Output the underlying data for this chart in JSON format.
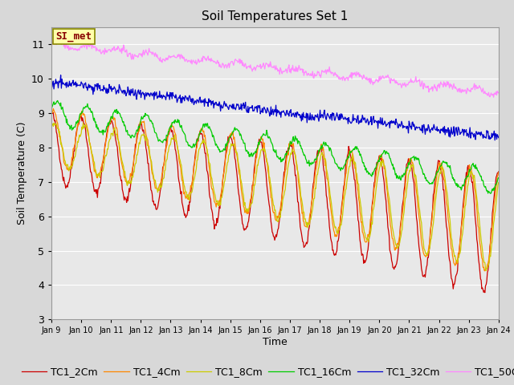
{
  "title": "Soil Temperatures Set 1",
  "xlabel": "Time",
  "ylabel": "Soil Temperature (C)",
  "ylim": [
    3.0,
    11.5
  ],
  "yticks": [
    3.0,
    4.0,
    5.0,
    6.0,
    7.0,
    8.0,
    9.0,
    10.0,
    11.0
  ],
  "date_labels": [
    "Jan 9",
    "Jan 10",
    "Jan 11",
    "Jan 12",
    "Jan 13",
    "Jan 14",
    "Jan 15",
    "Jan 16",
    "Jan 17",
    "Jan 18",
    "Jan 19",
    "Jan 20",
    "Jan 21",
    "Jan 22",
    "Jan 23",
    "Jan 24"
  ],
  "legend_labels": [
    "TC1_2Cm",
    "TC1_4Cm",
    "TC1_8Cm",
    "TC1_16Cm",
    "TC1_32Cm",
    "TC1_50Cm"
  ],
  "colors": [
    "#cc0000",
    "#ff8800",
    "#cccc00",
    "#00cc00",
    "#0000cc",
    "#ff88ff"
  ],
  "annotation_text": "SI_met",
  "annotation_bg": "#ffffaa",
  "annotation_border": "#888800",
  "background_color": "#e8e8e8",
  "grid_color": "#ffffff",
  "title_fontsize": 11,
  "axis_fontsize": 9,
  "legend_fontsize": 9,
  "fig_width": 6.4,
  "fig_height": 4.8,
  "dpi": 100
}
